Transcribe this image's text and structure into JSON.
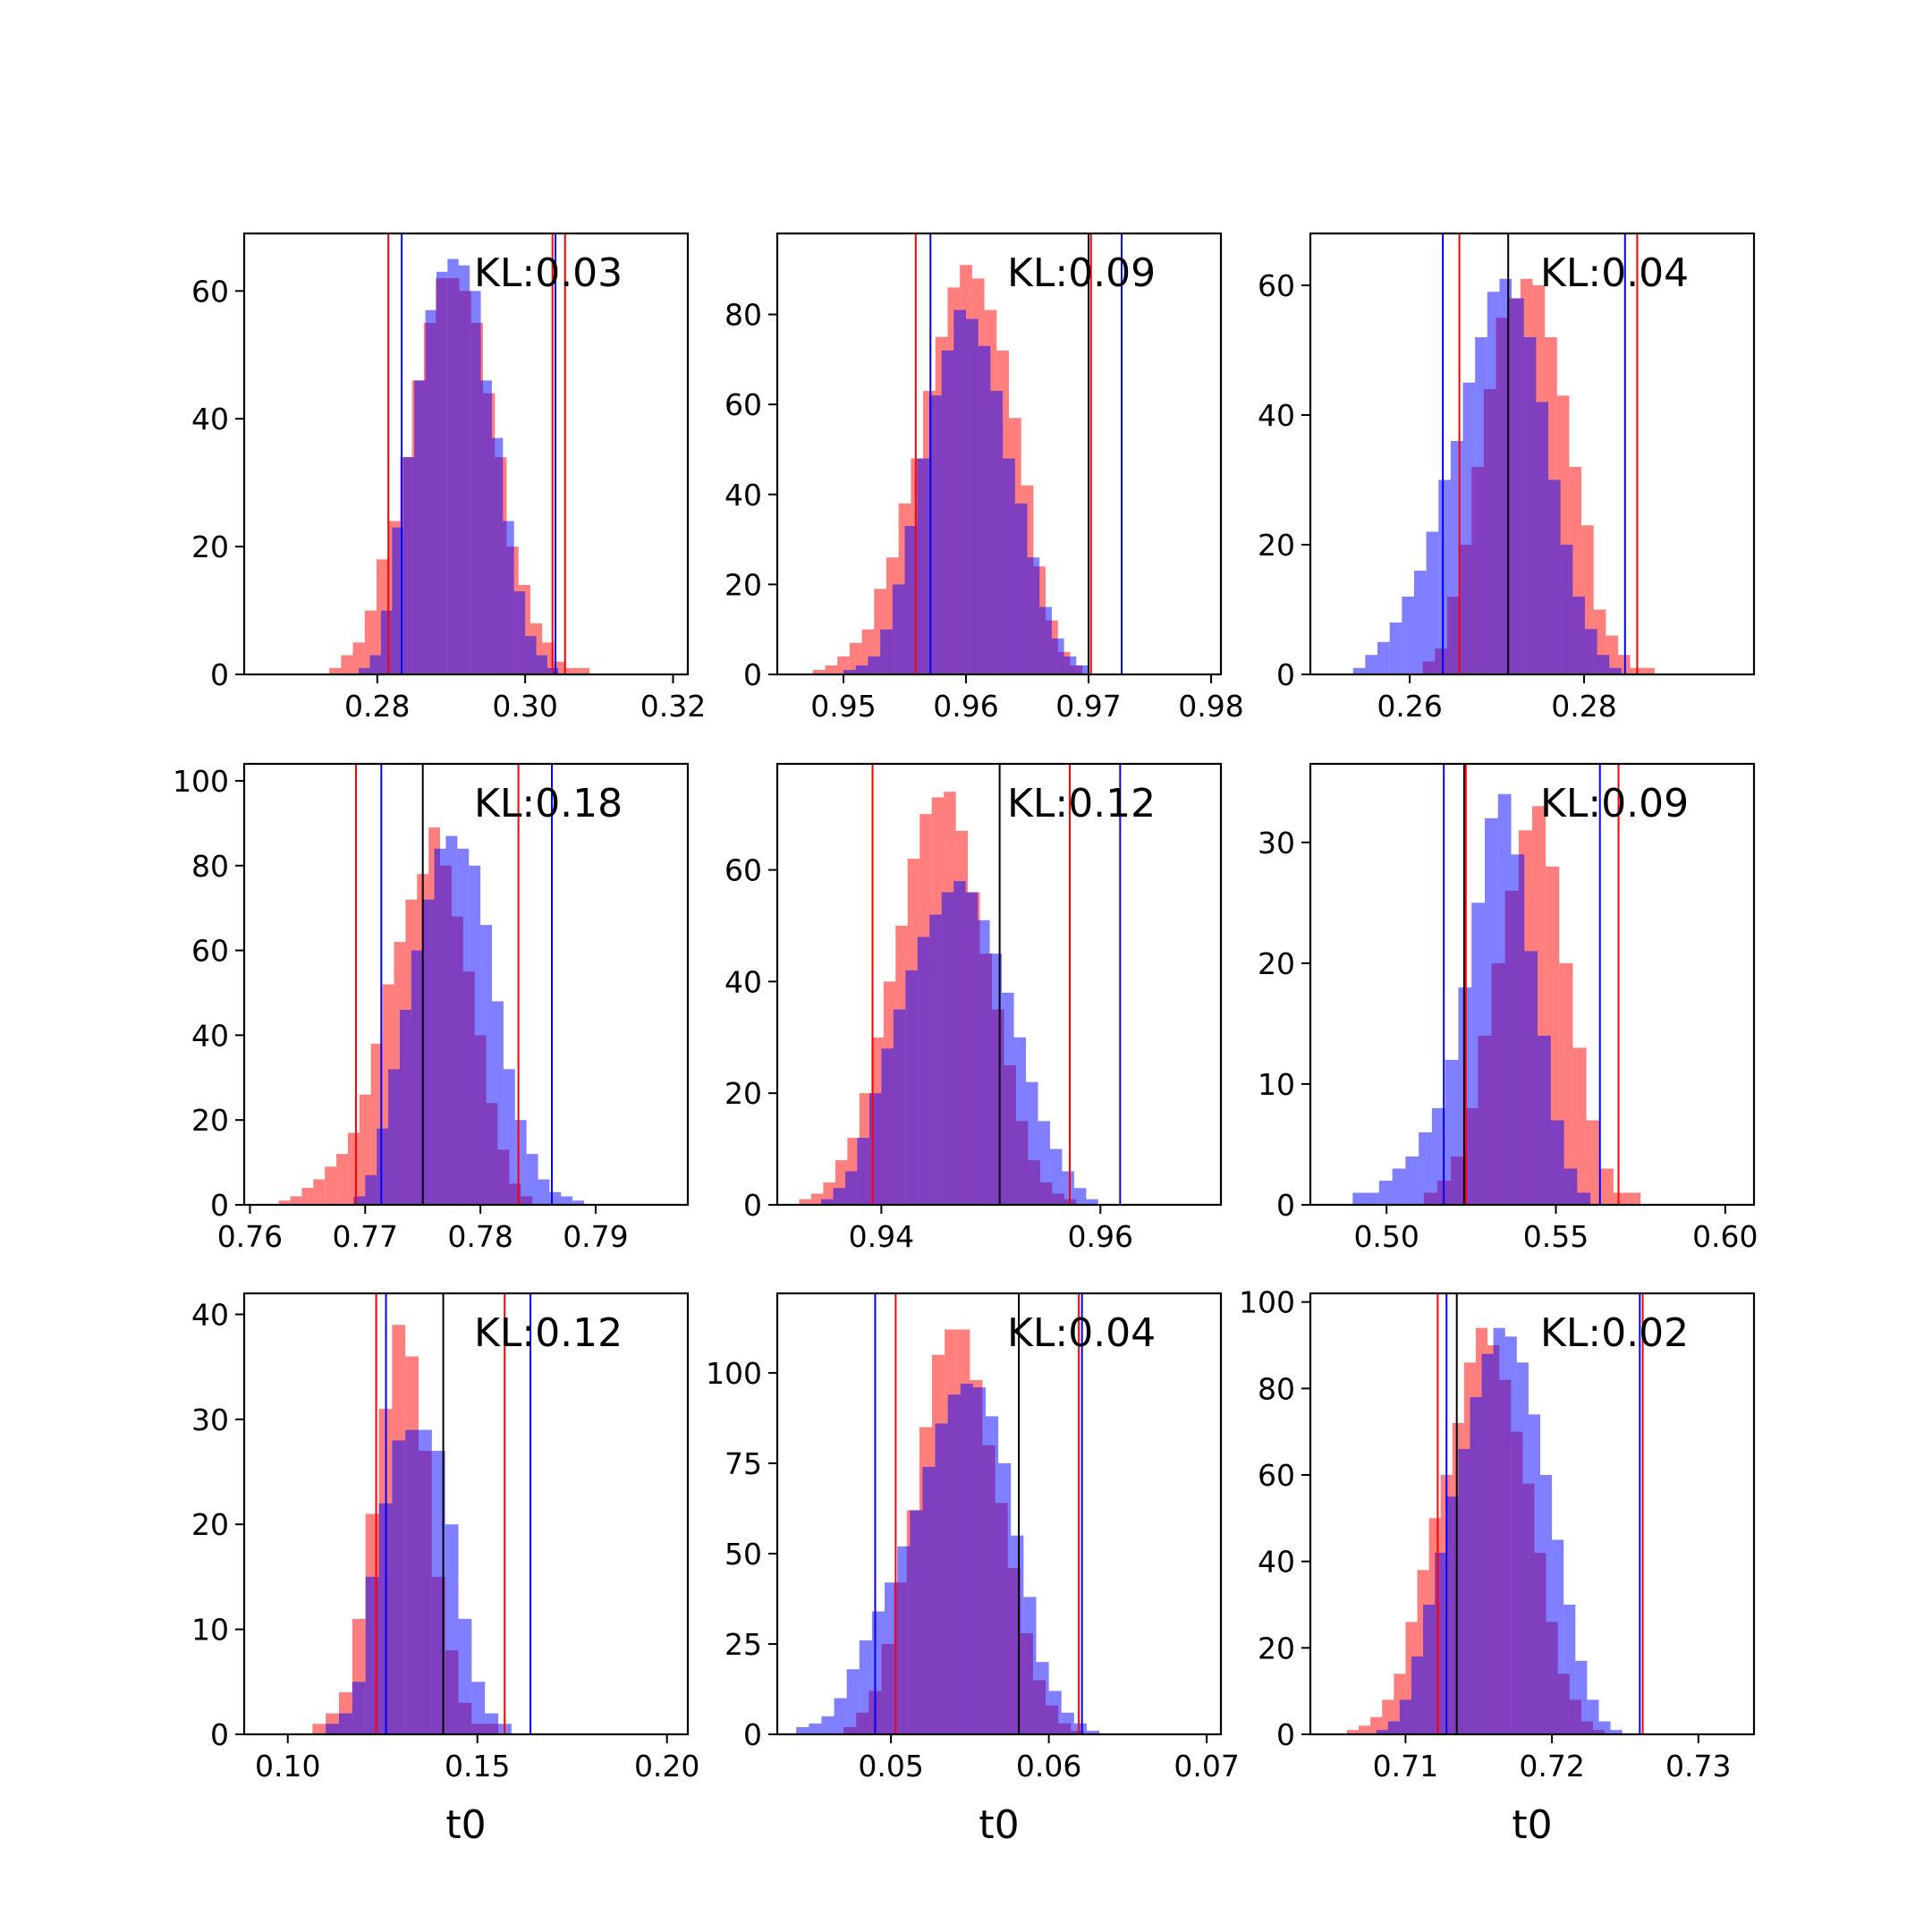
{
  "chart_data": [
    {
      "type": "histogram",
      "panel": 1,
      "annotation": "KL:0.03",
      "xlim": [
        0.262,
        0.322
      ],
      "ylim": [
        0,
        69
      ],
      "xticks": [
        0.28,
        0.3,
        0.32
      ],
      "xtick_labels": [
        "0.28",
        "0.30",
        "0.32"
      ],
      "yticks": [
        0,
        20,
        40,
        60
      ],
      "ytick_labels": [
        "0",
        "20",
        "40",
        "60"
      ],
      "xlabel": "",
      "series": [
        {
          "color": "#ff0000",
          "bin_start": 0.2735,
          "bin_width": 0.0016,
          "counts": [
            1,
            3,
            5,
            10,
            18,
            24,
            34,
            46,
            55,
            62,
            62,
            60,
            55,
            44,
            34,
            20,
            14,
            8,
            5,
            2,
            1,
            1
          ]
        },
        {
          "color": "#0000ff",
          "bin_start": 0.2775,
          "bin_width": 0.0015,
          "counts": [
            1,
            3,
            10,
            23,
            34,
            46,
            57,
            63,
            65,
            64,
            60,
            46,
            37,
            24,
            13,
            6,
            3,
            1
          ]
        }
      ],
      "vlines": [
        {
          "x": 0.2815,
          "color": "#ff0000"
        },
        {
          "x": 0.2833,
          "color": "#0000ff"
        },
        {
          "x": 0.3037,
          "color": "#ff0000"
        },
        {
          "x": 0.3041,
          "color": "#0000ff"
        },
        {
          "x": 0.3054,
          "color": "#ff0000"
        }
      ]
    },
    {
      "type": "histogram",
      "panel": 2,
      "annotation": "KL:0.09",
      "xlim": [
        0.9446,
        0.9808
      ],
      "ylim": [
        0,
        98
      ],
      "xticks": [
        0.95,
        0.96,
        0.97,
        0.98
      ],
      "xtick_labels": [
        "0.95",
        "0.96",
        "0.97",
        "0.98"
      ],
      "yticks": [
        0,
        20,
        40,
        60,
        80
      ],
      "ytick_labels": [
        "0",
        "20",
        "40",
        "60",
        "80"
      ],
      "xlabel": "",
      "series": [
        {
          "color": "#ff0000",
          "bin_start": 0.9475,
          "bin_width": 0.001,
          "counts": [
            1,
            2,
            4,
            7,
            10,
            19,
            26,
            38,
            48,
            63,
            75,
            86,
            91,
            88,
            81,
            72,
            57,
            42,
            24,
            12,
            5,
            2
          ]
        },
        {
          "color": "#0000ff",
          "bin_start": 0.95,
          "bin_width": 0.001,
          "counts": [
            1,
            2,
            4,
            10,
            20,
            33,
            48,
            62,
            72,
            81,
            79,
            73,
            63,
            48,
            38,
            26,
            15,
            8,
            4,
            2
          ]
        }
      ],
      "vlines": [
        {
          "x": 0.9559,
          "color": "#ff0000"
        },
        {
          "x": 0.9571,
          "color": "#0000ff"
        },
        {
          "x": 0.97,
          "color": "#000000"
        },
        {
          "x": 0.9702,
          "color": "#ff0000"
        },
        {
          "x": 0.9727,
          "color": "#0000ff"
        }
      ]
    },
    {
      "type": "histogram",
      "panel": 3,
      "annotation": "KL:0.04",
      "xlim": [
        0.2486,
        0.2995
      ],
      "ylim": [
        0,
        68
      ],
      "xticks": [
        0.26,
        0.28
      ],
      "xtick_labels": [
        "0.26",
        "0.28"
      ],
      "yticks": [
        0,
        20,
        40,
        60
      ],
      "ytick_labels": [
        "0",
        "20",
        "40",
        "60"
      ],
      "xlabel": "",
      "series": [
        {
          "color": "#ff0000",
          "bin_start": 0.2615,
          "bin_width": 0.0014,
          "counts": [
            2,
            4,
            12,
            20,
            32,
            44,
            55,
            58,
            61,
            60,
            52,
            43,
            32,
            23,
            10,
            6,
            3,
            1,
            1
          ]
        },
        {
          "color": "#0000ff",
          "bin_start": 0.2535,
          "bin_width": 0.0014,
          "counts": [
            1,
            3,
            5,
            8,
            12,
            16,
            22,
            30,
            36,
            45,
            52,
            59,
            61,
            58,
            52,
            42,
            30,
            20,
            12,
            7,
            3,
            1
          ]
        }
      ],
      "vlines": [
        {
          "x": 0.2638,
          "color": "#0000ff"
        },
        {
          "x": 0.2657,
          "color": "#ff0000"
        },
        {
          "x": 0.2713,
          "color": "#000000"
        },
        {
          "x": 0.2847,
          "color": "#0000ff"
        },
        {
          "x": 0.2861,
          "color": "#ff0000"
        }
      ]
    },
    {
      "type": "histogram",
      "panel": 4,
      "annotation": "KL:0.18",
      "xlim": [
        0.7595,
        0.798
      ],
      "ylim": [
        0,
        104
      ],
      "xticks": [
        0.76,
        0.77,
        0.78,
        0.79
      ],
      "xtick_labels": [
        "0.76",
        "0.77",
        "0.78",
        "0.79"
      ],
      "yticks": [
        0,
        20,
        40,
        60,
        80,
        100
      ],
      "ytick_labels": [
        "0",
        "20",
        "40",
        "60",
        "80",
        "100"
      ],
      "xlabel": "",
      "series": [
        {
          "color": "#ff0000",
          "bin_start": 0.7625,
          "bin_width": 0.001,
          "counts": [
            1,
            2,
            4,
            6,
            9,
            12,
            17,
            26,
            38,
            52,
            62,
            72,
            78,
            89,
            80,
            68,
            55,
            40,
            24,
            13,
            5,
            2
          ]
        },
        {
          "color": "#0000ff",
          "bin_start": 0.769,
          "bin_width": 0.001,
          "counts": [
            2,
            7,
            18,
            32,
            46,
            60,
            72,
            84,
            87,
            84,
            80,
            66,
            48,
            32,
            20,
            12,
            6,
            3,
            2,
            1
          ]
        }
      ],
      "vlines": [
        {
          "x": 0.7692,
          "color": "#ff0000"
        },
        {
          "x": 0.7714,
          "color": "#0000ff"
        },
        {
          "x": 0.775,
          "color": "#000000"
        },
        {
          "x": 0.7833,
          "color": "#ff0000"
        },
        {
          "x": 0.7862,
          "color": "#0000ff"
        }
      ]
    },
    {
      "type": "histogram",
      "panel": 5,
      "annotation": "KL:0.12",
      "xlim": [
        0.9305,
        0.971
      ],
      "ylim": [
        0,
        79
      ],
      "xticks": [
        0.94,
        0.96
      ],
      "xtick_labels": [
        "0.94",
        "0.96"
      ],
      "yticks": [
        0,
        20,
        40,
        60
      ],
      "ytick_labels": [
        "0",
        "20",
        "40",
        "60"
      ],
      "xlabel": "",
      "series": [
        {
          "color": "#ff0000",
          "bin_start": 0.9325,
          "bin_width": 0.0011,
          "counts": [
            1,
            2,
            4,
            8,
            12,
            20,
            30,
            40,
            50,
            62,
            70,
            73,
            74,
            67,
            56,
            45,
            35,
            25,
            15,
            8,
            4,
            2,
            1
          ]
        },
        {
          "color": "#0000ff",
          "bin_start": 0.9345,
          "bin_width": 0.0011,
          "counts": [
            1,
            3,
            6,
            12,
            20,
            28,
            35,
            42,
            48,
            52,
            56,
            58,
            56,
            51,
            45,
            38,
            30,
            22,
            15,
            10,
            6,
            3,
            1
          ]
        }
      ],
      "vlines": [
        {
          "x": 0.9392,
          "color": "#ff0000"
        },
        {
          "x": 0.9508,
          "color": "#000000"
        },
        {
          "x": 0.9572,
          "color": "#ff0000"
        },
        {
          "x": 0.9618,
          "color": "#0000ff"
        }
      ]
    },
    {
      "type": "histogram",
      "panel": 6,
      "annotation": "KL:0.09",
      "xlim": [
        0.4775,
        0.6085
      ],
      "ylim": [
        0,
        36.5
      ],
      "xticks": [
        0.5,
        0.55,
        0.6
      ],
      "xtick_labels": [
        "0.50",
        "0.55",
        "0.60"
      ],
      "yticks": [
        0,
        10,
        20,
        30
      ],
      "ytick_labels": [
        "0",
        "10",
        "20",
        "30"
      ],
      "xlabel": "",
      "series": [
        {
          "color": "#ff0000",
          "bin_start": 0.511,
          "bin_width": 0.004,
          "counts": [
            1,
            2,
            4,
            8,
            14,
            20,
            26,
            31,
            33,
            28,
            20,
            13,
            7,
            3,
            1,
            1
          ]
        },
        {
          "color": "#0000ff",
          "bin_start": 0.49,
          "bin_width": 0.0039,
          "counts": [
            1,
            1,
            2,
            3,
            4,
            6,
            8,
            12,
            18,
            25,
            32,
            34,
            29,
            21,
            14,
            7,
            3,
            1
          ]
        }
      ],
      "vlines": [
        {
          "x": 0.5169,
          "color": "#0000ff"
        },
        {
          "x": 0.5229,
          "color": "#000000"
        },
        {
          "x": 0.5234,
          "color": "#ff0000"
        },
        {
          "x": 0.563,
          "color": "#0000ff"
        },
        {
          "x": 0.5685,
          "color": "#ff0000"
        }
      ]
    },
    {
      "type": "histogram",
      "panel": 7,
      "annotation": "KL:0.12",
      "xlim": [
        0.0885,
        0.2055
      ],
      "ylim": [
        0,
        42
      ],
      "xticks": [
        0.1,
        0.15,
        0.2
      ],
      "xtick_labels": [
        "0.10",
        "0.15",
        "0.20"
      ],
      "yticks": [
        0,
        10,
        20,
        30,
        40
      ],
      "ytick_labels": [
        "0",
        "10",
        "20",
        "30",
        "40"
      ],
      "xlabel": "t0",
      "series": [
        {
          "color": "#ff0000",
          "bin_start": 0.1065,
          "bin_width": 0.0035,
          "counts": [
            1,
            2,
            4,
            11,
            21,
            31,
            39,
            36,
            27,
            15,
            8,
            3,
            1,
            1
          ]
        },
        {
          "color": "#0000ff",
          "bin_start": 0.11,
          "bin_width": 0.0035,
          "counts": [
            1,
            2,
            5,
            15,
            22,
            28,
            29,
            29,
            27,
            20,
            11,
            5,
            2,
            1
          ]
        }
      ],
      "vlines": [
        {
          "x": 0.1233,
          "color": "#ff0000"
        },
        {
          "x": 0.1259,
          "color": "#0000ff"
        },
        {
          "x": 0.141,
          "color": "#000000"
        },
        {
          "x": 0.1572,
          "color": "#ff0000"
        },
        {
          "x": 0.164,
          "color": "#0000ff"
        }
      ]
    },
    {
      "type": "histogram",
      "panel": 8,
      "annotation": "KL:0.04",
      "xlim": [
        0.0428,
        0.0709
      ],
      "ylim": [
        0,
        122
      ],
      "xticks": [
        0.05,
        0.06,
        0.07
      ],
      "xtick_labels": [
        "0.05",
        "0.06",
        "0.07"
      ],
      "yticks": [
        0,
        25,
        50,
        75,
        100
      ],
      "ytick_labels": [
        "0",
        "25",
        "50",
        "75",
        "100"
      ],
      "xlabel": "t0",
      "series": [
        {
          "color": "#ff0000",
          "bin_start": 0.047,
          "bin_width": 0.0008,
          "counts": [
            2,
            6,
            12,
            25,
            42,
            62,
            85,
            105,
            112,
            112,
            98,
            80,
            64,
            46,
            28,
            15,
            8,
            3,
            1
          ]
        },
        {
          "color": "#0000ff",
          "bin_start": 0.044,
          "bin_width": 0.0008,
          "counts": [
            2,
            3,
            5,
            10,
            18,
            26,
            34,
            42,
            52,
            62,
            74,
            86,
            94,
            97,
            96,
            88,
            75,
            55,
            38,
            20,
            12,
            6,
            3,
            1
          ]
        }
      ],
      "vlines": [
        {
          "x": 0.049,
          "color": "#0000ff"
        },
        {
          "x": 0.0503,
          "color": "#ff0000"
        },
        {
          "x": 0.0581,
          "color": "#000000"
        },
        {
          "x": 0.0619,
          "color": "#ff0000"
        },
        {
          "x": 0.0621,
          "color": "#0000ff"
        }
      ]
    },
    {
      "type": "histogram",
      "panel": 9,
      "annotation": "KL:0.02",
      "xlim": [
        0.7035,
        0.7338
      ],
      "ylim": [
        0,
        102
      ],
      "xticks": [
        0.71,
        0.72,
        0.73
      ],
      "xtick_labels": [
        "0.71",
        "0.72",
        "0.73"
      ],
      "yticks": [
        0,
        20,
        40,
        60,
        80,
        100
      ],
      "ytick_labels": [
        "0",
        "20",
        "40",
        "60",
        "80",
        "100"
      ],
      "xlabel": "t0",
      "series": [
        {
          "color": "#ff0000",
          "bin_start": 0.706,
          "bin_width": 0.0008,
          "counts": [
            1,
            2,
            4,
            8,
            14,
            26,
            38,
            50,
            60,
            72,
            86,
            94,
            90,
            82,
            70,
            58,
            42,
            26,
            14,
            8,
            3,
            1
          ]
        },
        {
          "color": "#0000ff",
          "bin_start": 0.708,
          "bin_width": 0.0008,
          "counts": [
            1,
            3,
            8,
            18,
            30,
            42,
            55,
            66,
            78,
            88,
            94,
            92,
            86,
            74,
            60,
            45,
            30,
            17,
            8,
            3,
            1
          ]
        }
      ],
      "vlines": [
        {
          "x": 0.7122,
          "color": "#ff0000"
        },
        {
          "x": 0.7128,
          "color": "#0000ff"
        },
        {
          "x": 0.7135,
          "color": "#000000"
        },
        {
          "x": 0.726,
          "color": "#0000ff"
        },
        {
          "x": 0.7262,
          "color": "#ff0000"
        }
      ]
    }
  ]
}
